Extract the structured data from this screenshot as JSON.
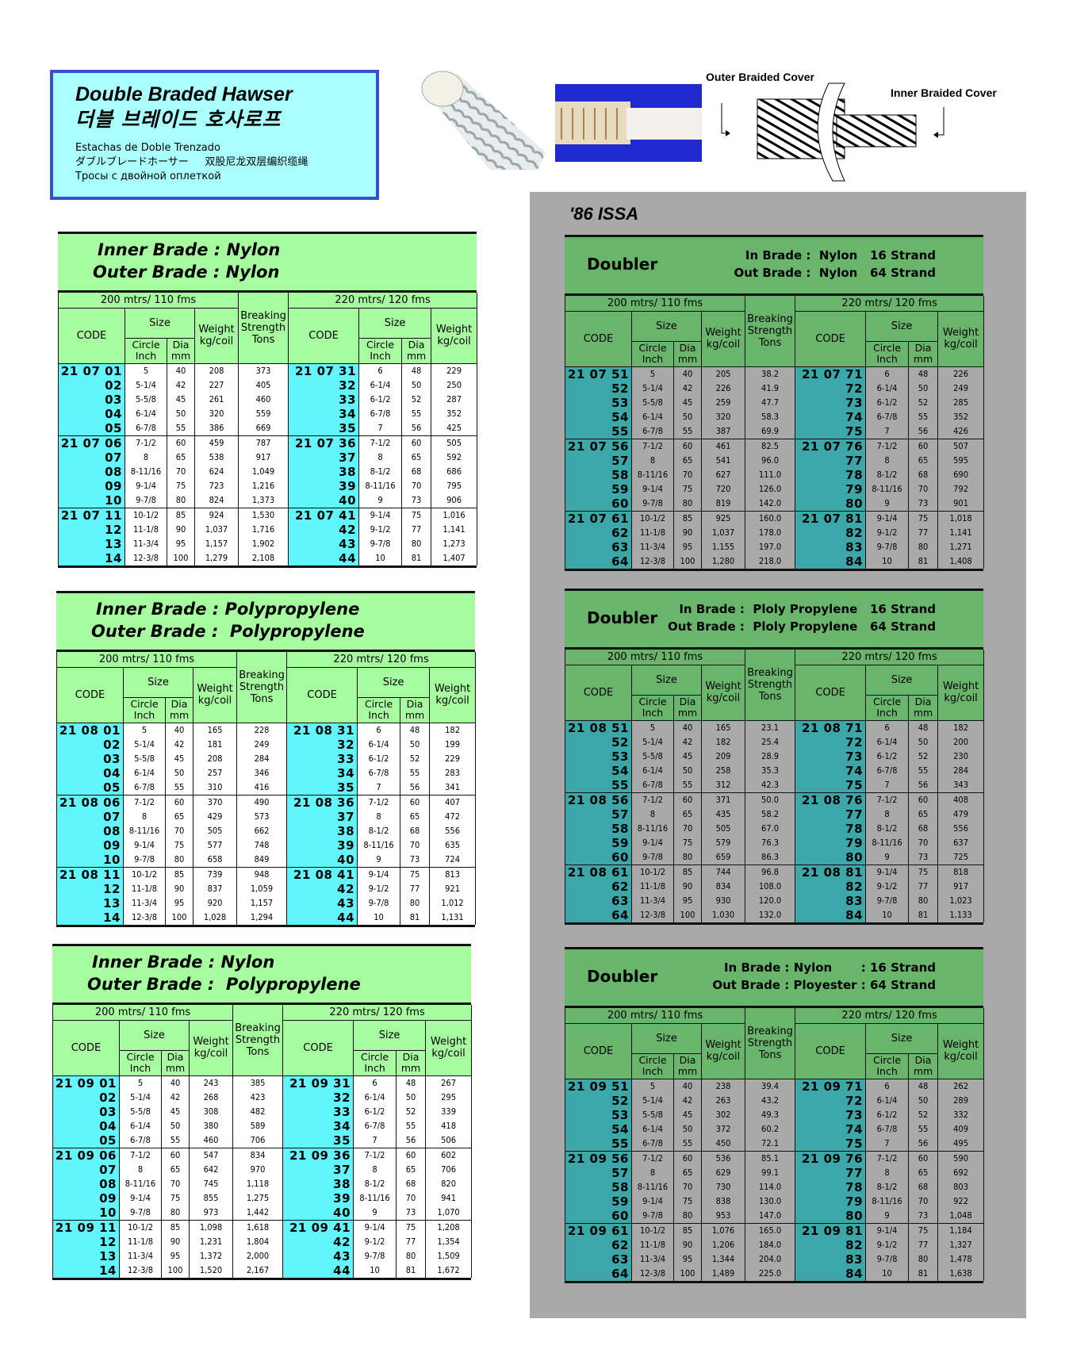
{
  "header": {
    "title_en": "Double Braded Hawser",
    "title_ko": "더블 브레이드 호사로프",
    "title_es": "Estachas de Doble Trenzado",
    "title_ja": "ダブルブレードホーサー",
    "title_zh": "双股尼龙双层编织缆绳",
    "title_ru": "Тросы с двойной оплеткой"
  },
  "diagram": {
    "outer_label": "Outer Braided Cover",
    "inner_label": "Inner Braided Cover"
  },
  "panel": {
    "title": "'86 ISSA"
  },
  "colors": {
    "left_green": "#a6fc9e",
    "left_cyan": "#62f6fc",
    "right_green": "#6ab56c",
    "right_teal": "#3ca6a8",
    "panel_gray": "#a9a9a9",
    "header_blue": "#3a4fd0",
    "header_bg": "#aaffff"
  },
  "headers": {
    "group1": "200 mtrs/ 110 fms",
    "group2": "220 mtrs/ 120 fms",
    "code": "CODE",
    "size": "Size",
    "circle": "Circle",
    "inch": "Inch",
    "dia": "Dia",
    "mm": "mm",
    "weight": "Weight",
    "kgcoil": "kg/coil",
    "breaking": "Breaking",
    "strength": "Strength",
    "tons": "Tons"
  },
  "tables": [
    {
      "style": "left",
      "line1": "Inner Brade : Nylon",
      "line2": "Outer Brade : Nylon",
      "rows": [
        [
          "21 07 01",
          "5",
          "40",
          "208",
          "373",
          "21 07 31",
          "6",
          "48",
          "229"
        ],
        [
          "02",
          "5-1/4",
          "42",
          "227",
          "405",
          "32",
          "6-1/4",
          "50",
          "250"
        ],
        [
          "03",
          "5-5/8",
          "45",
          "261",
          "460",
          "33",
          "6-1/2",
          "52",
          "287"
        ],
        [
          "04",
          "6-1/4",
          "50",
          "320",
          "559",
          "34",
          "6-7/8",
          "55",
          "352"
        ],
        [
          "05",
          "6-7/8",
          "55",
          "386",
          "669",
          "35",
          "7",
          "56",
          "425"
        ],
        [
          "21 07 06",
          "7-1/2",
          "60",
          "459",
          "787",
          "21 07 36",
          "7-1/2",
          "60",
          "505"
        ],
        [
          "07",
          "8",
          "65",
          "538",
          "917",
          "37",
          "8",
          "65",
          "592"
        ],
        [
          "08",
          "8-11/16",
          "70",
          "624",
          "1,049",
          "38",
          "8-1/2",
          "68",
          "686"
        ],
        [
          "09",
          "9-1/4",
          "75",
          "723",
          "1,216",
          "39",
          "8-11/16",
          "70",
          "795"
        ],
        [
          "10",
          "9-7/8",
          "80",
          "824",
          "1,373",
          "40",
          "9",
          "73",
          "906"
        ],
        [
          "21 07 11",
          "10-1/2",
          "85",
          "924",
          "1,530",
          "21 07 41",
          "9-1/4",
          "75",
          "1,016"
        ],
        [
          "12",
          "11-1/8",
          "90",
          "1,037",
          "1,716",
          "42",
          "9-1/2",
          "77",
          "1,141"
        ],
        [
          "13",
          "11-3/4",
          "95",
          "1,157",
          "1,902",
          "43",
          "9-7/8",
          "80",
          "1,273"
        ],
        [
          "14",
          "12-3/8",
          "100",
          "1,279",
          "2,108",
          "44",
          "10",
          "81",
          "1,407"
        ]
      ]
    },
    {
      "style": "left",
      "line1": "Inner Brade : Polypropylene",
      "line2": "Outer Brade :  Polypropylene",
      "rows": [
        [
          "21 08 01",
          "5",
          "40",
          "165",
          "228",
          "21 08 31",
          "6",
          "48",
          "182"
        ],
        [
          "02",
          "5-1/4",
          "42",
          "181",
          "249",
          "32",
          "6-1/4",
          "50",
          "199"
        ],
        [
          "03",
          "5-5/8",
          "45",
          "208",
          "284",
          "33",
          "6-1/2",
          "52",
          "229"
        ],
        [
          "04",
          "6-1/4",
          "50",
          "257",
          "346",
          "34",
          "6-7/8",
          "55",
          "283"
        ],
        [
          "05",
          "6-7/8",
          "55",
          "310",
          "416",
          "35",
          "7",
          "56",
          "341"
        ],
        [
          "21 08 06",
          "7-1/2",
          "60",
          "370",
          "490",
          "21 08 36",
          "7-1/2",
          "60",
          "407"
        ],
        [
          "07",
          "8",
          "65",
          "429",
          "573",
          "37",
          "8",
          "65",
          "472"
        ],
        [
          "08",
          "8-11/16",
          "70",
          "505",
          "662",
          "38",
          "8-1/2",
          "68",
          "556"
        ],
        [
          "09",
          "9-1/4",
          "75",
          "577",
          "748",
          "39",
          "8-11/16",
          "70",
          "635"
        ],
        [
          "10",
          "9-7/8",
          "80",
          "658",
          "849",
          "40",
          "9",
          "73",
          "724"
        ],
        [
          "21 08 11",
          "10-1/2",
          "85",
          "739",
          "948",
          "21 08 41",
          "9-1/4",
          "75",
          "813"
        ],
        [
          "12",
          "11-1/8",
          "90",
          "837",
          "1,059",
          "42",
          "9-1/2",
          "77",
          "921"
        ],
        [
          "13",
          "11-3/4",
          "95",
          "920",
          "1,157",
          "43",
          "9-7/8",
          "80",
          "1,012"
        ],
        [
          "14",
          "12-3/8",
          "100",
          "1,028",
          "1,294",
          "44",
          "10",
          "81",
          "1,131"
        ]
      ]
    },
    {
      "style": "left",
      "line1": "Inner Brade : Nylon",
      "line2": "Outer Brade :  Polypropylene",
      "rows": [
        [
          "21 09 01",
          "5",
          "40",
          "243",
          "385",
          "21 09 31",
          "6",
          "48",
          "267"
        ],
        [
          "02",
          "5-1/4",
          "42",
          "268",
          "423",
          "32",
          "6-1/4",
          "50",
          "295"
        ],
        [
          "03",
          "5-5/8",
          "45",
          "308",
          "482",
          "33",
          "6-1/2",
          "52",
          "339"
        ],
        [
          "04",
          "6-1/4",
          "50",
          "380",
          "589",
          "34",
          "6-7/8",
          "55",
          "418"
        ],
        [
          "05",
          "6-7/8",
          "55",
          "460",
          "706",
          "35",
          "7",
          "56",
          "506"
        ],
        [
          "21 09 06",
          "7-1/2",
          "60",
          "547",
          "834",
          "21 09 36",
          "7-1/2",
          "60",
          "602"
        ],
        [
          "07",
          "8",
          "65",
          "642",
          "970",
          "37",
          "8",
          "65",
          "706"
        ],
        [
          "08",
          "8-11/16",
          "70",
          "745",
          "1,118",
          "38",
          "8-1/2",
          "68",
          "820"
        ],
        [
          "09",
          "9-1/4",
          "75",
          "855",
          "1,275",
          "39",
          "8-11/16",
          "70",
          "941"
        ],
        [
          "10",
          "9-7/8",
          "80",
          "973",
          "1,442",
          "40",
          "9",
          "73",
          "1,070"
        ],
        [
          "21 09 11",
          "10-1/2",
          "85",
          "1,098",
          "1,618",
          "21 09 41",
          "9-1/4",
          "75",
          "1,208"
        ],
        [
          "12",
          "11-1/8",
          "90",
          "1,231",
          "1,804",
          "42",
          "9-1/2",
          "77",
          "1,354"
        ],
        [
          "13",
          "11-3/4",
          "95",
          "1,372",
          "2,000",
          "43",
          "9-7/8",
          "80",
          "1,509"
        ],
        [
          "14",
          "12-3/8",
          "100",
          "1,520",
          "2,167",
          "44",
          "10",
          "81",
          "1,672"
        ]
      ]
    },
    {
      "style": "right",
      "doubler": "Doubler",
      "line1": "In Brade :  Nylon   16 Strand",
      "line2": "Out Brade :  Nylon   64 Strand",
      "rows": [
        [
          "21 07 51",
          "5",
          "40",
          "205",
          "38.2",
          "21 07 71",
          "6",
          "48",
          "226"
        ],
        [
          "52",
          "5-1/4",
          "42",
          "226",
          "41.9",
          "72",
          "6-1/4",
          "50",
          "249"
        ],
        [
          "53",
          "5-5/8",
          "45",
          "259",
          "47.7",
          "73",
          "6-1/2",
          "52",
          "285"
        ],
        [
          "54",
          "6-1/4",
          "50",
          "320",
          "58.3",
          "74",
          "6-7/8",
          "55",
          "352"
        ],
        [
          "55",
          "6-7/8",
          "55",
          "387",
          "69.9",
          "75",
          "7",
          "56",
          "426"
        ],
        [
          "21 07 56",
          "7-1/2",
          "60",
          "461",
          "82.5",
          "21 07 76",
          "7-1/2",
          "60",
          "507"
        ],
        [
          "57",
          "8",
          "65",
          "541",
          "96.0",
          "77",
          "8",
          "65",
          "595"
        ],
        [
          "58",
          "8-11/16",
          "70",
          "627",
          "111.0",
          "78",
          "8-1/2",
          "68",
          "690"
        ],
        [
          "59",
          "9-1/4",
          "75",
          "720",
          "126.0",
          "79",
          "8-11/16",
          "70",
          "792"
        ],
        [
          "60",
          "9-7/8",
          "80",
          "819",
          "142.0",
          "80",
          "9",
          "73",
          "901"
        ],
        [
          "21 07 61",
          "10-1/2",
          "85",
          "925",
          "160.0",
          "21 07 81",
          "9-1/4",
          "75",
          "1,018"
        ],
        [
          "62",
          "11-1/8",
          "90",
          "1,037",
          "178.0",
          "82",
          "9-1/2",
          "77",
          "1,141"
        ],
        [
          "63",
          "11-3/4",
          "95",
          "1,155",
          "197.0",
          "83",
          "9-7/8",
          "80",
          "1,271"
        ],
        [
          "64",
          "12-3/8",
          "100",
          "1,280",
          "218.0",
          "84",
          "10",
          "81",
          "1,408"
        ]
      ]
    },
    {
      "style": "right",
      "doubler": "Doubler",
      "line1": "In Brade :  Ploly Propylene   16 Strand",
      "line2": "Out Brade :  Ploly Propylene   64 Strand",
      "rows": [
        [
          "21 08 51",
          "5",
          "40",
          "165",
          "23.1",
          "21 08 71",
          "6",
          "48",
          "182"
        ],
        [
          "52",
          "5-1/4",
          "42",
          "182",
          "25.4",
          "72",
          "6-1/4",
          "50",
          "200"
        ],
        [
          "53",
          "5-5/8",
          "45",
          "209",
          "28.9",
          "73",
          "6-1/2",
          "52",
          "230"
        ],
        [
          "54",
          "6-1/4",
          "50",
          "258",
          "35.3",
          "74",
          "6-7/8",
          "55",
          "284"
        ],
        [
          "55",
          "6-7/8",
          "55",
          "312",
          "42.3",
          "75",
          "7",
          "56",
          "343"
        ],
        [
          "21 08 56",
          "7-1/2",
          "60",
          "371",
          "50.0",
          "21 08 76",
          "7-1/2",
          "60",
          "408"
        ],
        [
          "57",
          "8",
          "65",
          "435",
          "58.2",
          "77",
          "8",
          "65",
          "479"
        ],
        [
          "58",
          "8-11/16",
          "70",
          "505",
          "67.0",
          "78",
          "8-1/2",
          "68",
          "556"
        ],
        [
          "59",
          "9-1/4",
          "75",
          "579",
          "76.3",
          "79",
          "8-11/16",
          "70",
          "637"
        ],
        [
          "60",
          "9-7/8",
          "80",
          "659",
          "86.3",
          "80",
          "9",
          "73",
          "725"
        ],
        [
          "21 08 61",
          "10-1/2",
          "85",
          "744",
          "96.8",
          "21 08 81",
          "9-1/4",
          "75",
          "818"
        ],
        [
          "62",
          "11-1/8",
          "90",
          "834",
          "108.0",
          "82",
          "9-1/2",
          "77",
          "917"
        ],
        [
          "63",
          "11-3/4",
          "95",
          "930",
          "120.0",
          "83",
          "9-7/8",
          "80",
          "1,023"
        ],
        [
          "64",
          "12-3/8",
          "100",
          "1,030",
          "132.0",
          "84",
          "10",
          "81",
          "1,133"
        ]
      ]
    },
    {
      "style": "right",
      "doubler": "Doubler",
      "line1": "In Brade : Nylon       : 16 Strand",
      "line2": "Out Brade : Ployester : 64 Strand",
      "rows": [
        [
          "21 09 51",
          "5",
          "40",
          "238",
          "39.4",
          "21 09 71",
          "6",
          "48",
          "262"
        ],
        [
          "52",
          "5-1/4",
          "42",
          "263",
          "43.2",
          "72",
          "6-1/4",
          "50",
          "289"
        ],
        [
          "53",
          "5-5/8",
          "45",
          "302",
          "49.3",
          "73",
          "6-1/2",
          "52",
          "332"
        ],
        [
          "54",
          "6-1/4",
          "50",
          "372",
          "60.2",
          "74",
          "6-7/8",
          "55",
          "409"
        ],
        [
          "55",
          "6-7/8",
          "55",
          "450",
          "72.1",
          "75",
          "7",
          "56",
          "495"
        ],
        [
          "21 09 56",
          "7-1/2",
          "60",
          "536",
          "85.1",
          "21 09 76",
          "7-1/2",
          "60",
          "590"
        ],
        [
          "57",
          "8",
          "65",
          "629",
          "99.1",
          "77",
          "8",
          "65",
          "692"
        ],
        [
          "58",
          "8-11/16",
          "70",
          "730",
          "114.0",
          "78",
          "8-1/2",
          "68",
          "803"
        ],
        [
          "59",
          "9-1/4",
          "75",
          "838",
          "130.0",
          "79",
          "8-11/16",
          "70",
          "922"
        ],
        [
          "60",
          "9-7/8",
          "80",
          "953",
          "147.0",
          "80",
          "9",
          "73",
          "1,048"
        ],
        [
          "21 09 61",
          "10-1/2",
          "85",
          "1,076",
          "165.0",
          "21 09 81",
          "9-1/4",
          "75",
          "1,184"
        ],
        [
          "62",
          "11-1/8",
          "90",
          "1,206",
          "184.0",
          "82",
          "9-1/2",
          "77",
          "1,327"
        ],
        [
          "63",
          "11-3/4",
          "95",
          "1,344",
          "204.0",
          "83",
          "9-7/8",
          "80",
          "1,478"
        ],
        [
          "64",
          "12-3/8",
          "100",
          "1,489",
          "225.0",
          "84",
          "10",
          "81",
          "1,638"
        ]
      ]
    }
  ]
}
